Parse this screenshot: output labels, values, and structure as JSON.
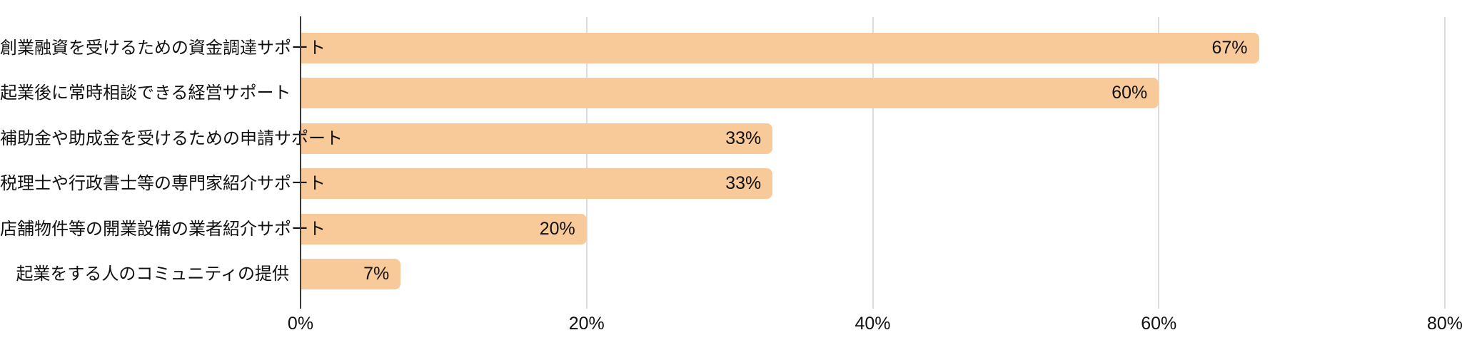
{
  "chart_data": {
    "type": "bar",
    "orientation": "horizontal",
    "title": "",
    "xlabel": "",
    "ylabel": "",
    "categories": [
      "創業融資を受けるための資金調達サポート",
      "起業後に常時相談できる経営サポート",
      "補助金や助成金を受けるための申請サポート",
      "税理士や行政書士等の専門家紹介サポート",
      "店舗物件等の開業設備の業者紹介サポート",
      "起業をする人のコミュニティの提供"
    ],
    "values": [
      67,
      60,
      33,
      33,
      20,
      7
    ],
    "value_labels": [
      "67%",
      "60%",
      "33%",
      "33%",
      "20%",
      "7%"
    ],
    "x_ticks": [
      {
        "value": 0,
        "label": "0%"
      },
      {
        "value": 20,
        "label": "20%"
      },
      {
        "value": 40,
        "label": "40%"
      },
      {
        "value": 60,
        "label": "60%"
      },
      {
        "value": 80,
        "label": "80%"
      }
    ],
    "xlim": [
      0,
      80
    ],
    "grid": "vertical",
    "legend": "none",
    "colors": {
      "bar": "#F8C999",
      "gridline": "#DCDCDC",
      "axis": "#3C3C3C",
      "text": "#111111",
      "background": "#FFFFFF"
    }
  }
}
